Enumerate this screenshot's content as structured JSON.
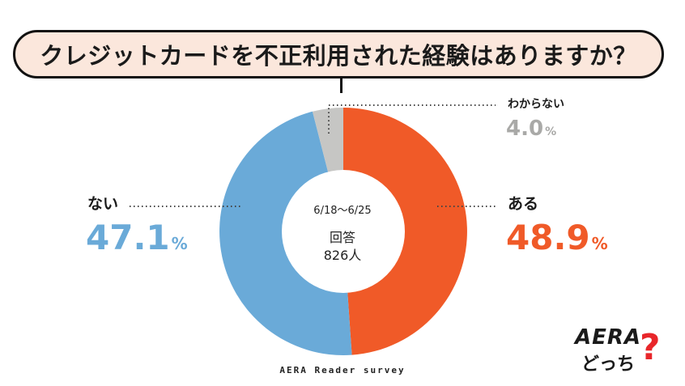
{
  "question": "クレジットカードを不正利用された経験はありますか？",
  "center": {
    "date_range": "6/18～6/25",
    "respondents_label": "回答",
    "respondents_count": "826人"
  },
  "footer": "AERA Reader survey",
  "logo": {
    "wordmark": "AERA",
    "subtitle": "どっち",
    "mark": "?"
  },
  "colors": {
    "yes": "#f05a28",
    "no": "#6aaad8",
    "unsure": "#c6c6c4",
    "bubble_fill": "#fbe7dc"
  },
  "chart_data": {
    "type": "pie",
    "variant": "donut",
    "title": "クレジットカードを不正利用された経験はありますか？",
    "categories": [
      "ある",
      "ない",
      "わからない"
    ],
    "values": [
      48.9,
      47.1,
      4.0
    ],
    "value_labels": [
      "48.9",
      "47.1",
      "4.0"
    ],
    "unit": "%",
    "start": "12 o'clock, clockwise"
  }
}
